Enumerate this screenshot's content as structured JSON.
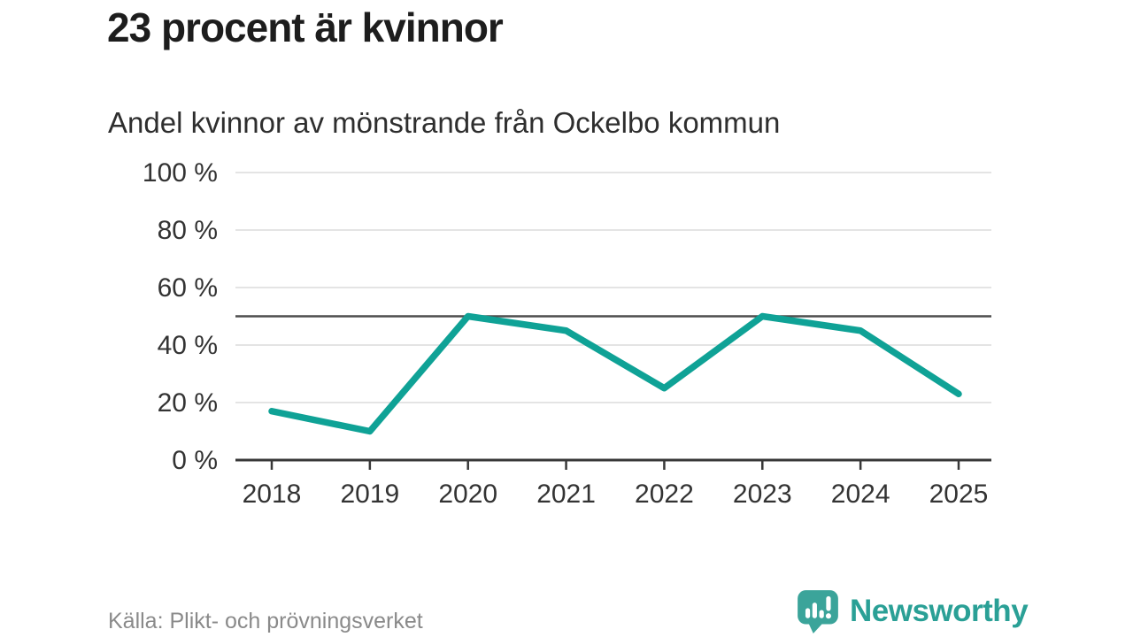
{
  "header": {
    "title": "23 procent är kvinnor",
    "subtitle": "Andel kvinnor av mönstrande från Ockelbo kommun"
  },
  "footer": {
    "source": "Källa: Plikt- och prövningsverket",
    "brand": "Newsworthy",
    "logo_icon": "speech-bubble-with-bar-chart-and-exclamation"
  },
  "colors": {
    "line": "#0fa296",
    "grid": "#dcdcdc",
    "reference_line": "#4d4d4d",
    "axis": "#383838",
    "tick_label": "#333333",
    "title": "#1d1d1d",
    "subtitle": "#2e2e2e",
    "source": "#8a8a8a",
    "brand": "#2aa096",
    "logo_bubble": "#3ba49a",
    "background": "#ffffff"
  },
  "chart_data": {
    "type": "line",
    "title": "23 procent är kvinnor",
    "subtitle": "Andel kvinnor av mönstrande från Ockelbo kommun",
    "categories": [
      "2018",
      "2019",
      "2020",
      "2021",
      "2022",
      "2023",
      "2024",
      "2025"
    ],
    "series": [
      {
        "name": "Andel kvinnor av mönstrande (%)",
        "values": [
          17,
          10,
          50,
          45,
          25,
          50,
          45,
          23
        ]
      }
    ],
    "xlabel": "",
    "ylabel": "",
    "ylim": [
      0,
      100
    ],
    "yticks": [
      0,
      20,
      40,
      60,
      80,
      100
    ],
    "ytick_labels": [
      "0 %",
      "20 %",
      "40 %",
      "60 %",
      "80 %",
      "100 %"
    ],
    "reference_line": 50,
    "grid": true,
    "legend": false,
    "source": "Källa: Plikt- och prövningsverket"
  }
}
